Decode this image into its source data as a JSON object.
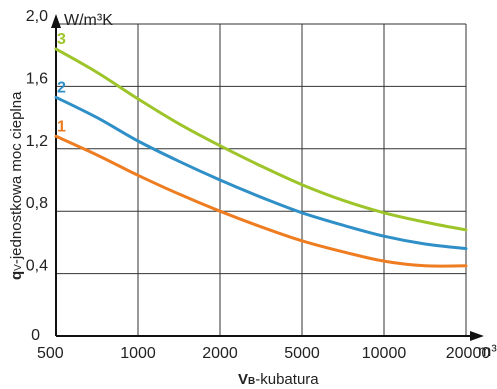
{
  "chart_data": {
    "type": "line",
    "x_categories": [
      "500",
      "1000",
      "2000",
      "5000",
      "10000",
      "20000"
    ],
    "x_unit": "m³",
    "xlabel_main": "V",
    "xlabel_sub": "B",
    "xlabel_rest": "-kubatura",
    "ylabel_main": "q",
    "ylabel_sub": "V",
    "ylabel_rest": "-jednostkowa moc cieplna",
    "y_unit": "W/m³K",
    "y_ticks": [
      "0",
      "0,4",
      "0,8",
      "1,2",
      "1,6",
      "2,0"
    ],
    "ylim": [
      0,
      2.0
    ],
    "grid": true,
    "series": [
      {
        "name": "3",
        "color": "#9dc52a",
        "points": [
          [
            0,
            1.84
          ],
          [
            0.5,
            1.69
          ],
          [
            1,
            1.52
          ],
          [
            1.5,
            1.36
          ],
          [
            2,
            1.22
          ],
          [
            2.5,
            1.09
          ],
          [
            3,
            0.97
          ],
          [
            3.5,
            0.87
          ],
          [
            4,
            0.79
          ],
          [
            4.5,
            0.73
          ],
          [
            5,
            0.68
          ]
        ]
      },
      {
        "name": "2",
        "color": "#2f8fc7",
        "points": [
          [
            0,
            1.53
          ],
          [
            0.5,
            1.4
          ],
          [
            1,
            1.25
          ],
          [
            1.5,
            1.12
          ],
          [
            2,
            1.0
          ],
          [
            2.5,
            0.89
          ],
          [
            3,
            0.79
          ],
          [
            3.5,
            0.71
          ],
          [
            4,
            0.64
          ],
          [
            4.5,
            0.59
          ],
          [
            5,
            0.56
          ]
        ]
      },
      {
        "name": "1",
        "color": "#ee7d22",
        "points": [
          [
            0,
            1.28
          ],
          [
            0.5,
            1.16
          ],
          [
            1,
            1.03
          ],
          [
            1.5,
            0.91
          ],
          [
            2,
            0.8
          ],
          [
            2.5,
            0.7
          ],
          [
            3,
            0.61
          ],
          [
            3.5,
            0.54
          ],
          [
            4,
            0.48
          ],
          [
            4.5,
            0.45
          ],
          [
            5,
            0.45
          ]
        ]
      }
    ]
  }
}
